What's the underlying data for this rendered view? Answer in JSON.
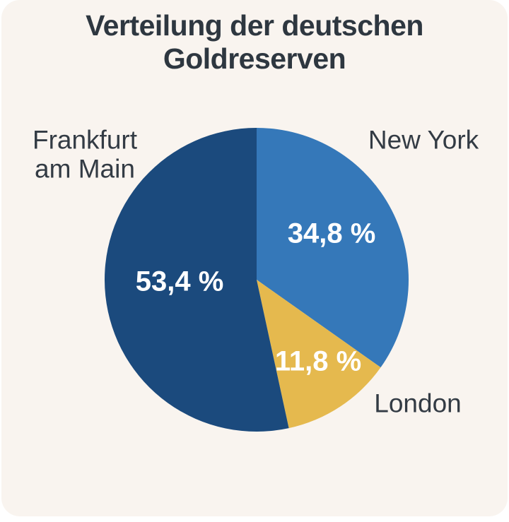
{
  "page": {
    "canvas_background_color": "#ffffff",
    "card_background_color": "#f9f4ef"
  },
  "chart_data": {
    "type": "pie",
    "title": "Verteilung der deutschen Goldreserven",
    "unit": "%",
    "direction": "clockwise",
    "start_angle_deg": 0,
    "grid": false,
    "legend_position": "labels-around-pie",
    "title_color": "#2e3740",
    "label_color": "#333b44",
    "slices": [
      {
        "label": "New York",
        "value": 34.8,
        "display_value": "34,8 %",
        "color": "#3578b9",
        "value_text_color": "#ffffff"
      },
      {
        "label": "London",
        "value": 11.8,
        "display_value": "11,8 %",
        "color": "#e5b94e",
        "value_text_color": "#ffffff"
      },
      {
        "label": "Frankfurt am Main",
        "value": 53.4,
        "display_value": "53,4 %",
        "color": "#1b4a7d",
        "value_text_color": "#ffffff"
      }
    ]
  }
}
